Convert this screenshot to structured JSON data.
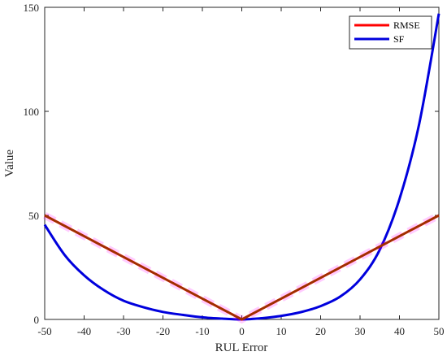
{
  "chart_data": {
    "type": "line",
    "title": "",
    "xlabel": "RUL Error",
    "ylabel": "Value",
    "xlim": [
      -50,
      50
    ],
    "ylim": [
      0,
      150
    ],
    "x_ticks": [
      -50,
      -40,
      -30,
      -20,
      -10,
      0,
      10,
      20,
      30,
      40,
      50
    ],
    "y_ticks": [
      0,
      50,
      100,
      150
    ],
    "x_tick_labels": [
      "-50",
      "-40",
      "-30",
      "-20",
      "-10",
      "0",
      "10",
      "20",
      "30",
      "40",
      "50"
    ],
    "y_tick_labels": [
      "0",
      "50",
      "100",
      "150"
    ],
    "grid": false,
    "legend_position": "top-right",
    "series": [
      {
        "name": "RMSE",
        "color": "#ff0000",
        "x": [
          -50,
          -40,
          -30,
          -20,
          -10,
          0,
          10,
          20,
          30,
          40,
          50
        ],
        "y": [
          50,
          40,
          30,
          20,
          10,
          0,
          10,
          20,
          30,
          40,
          50
        ]
      },
      {
        "name": "SF",
        "color": "#0000dd",
        "x": [
          -50,
          -45,
          -40,
          -35,
          -30,
          -25,
          -20,
          -15,
          -10,
          -5,
          0,
          5,
          10,
          15,
          20,
          25,
          30,
          35,
          40,
          45,
          50
        ],
        "y": [
          45.5,
          31.1,
          21.2,
          14.1,
          9.0,
          5.9,
          3.6,
          2.2,
          1.0,
          0.4,
          0,
          0.6,
          1.7,
          3.5,
          6.4,
          11.0,
          19.2,
          33.5,
          57.8,
          94.0,
          147.0
        ]
      }
    ],
    "overlap_color": "#993300"
  }
}
